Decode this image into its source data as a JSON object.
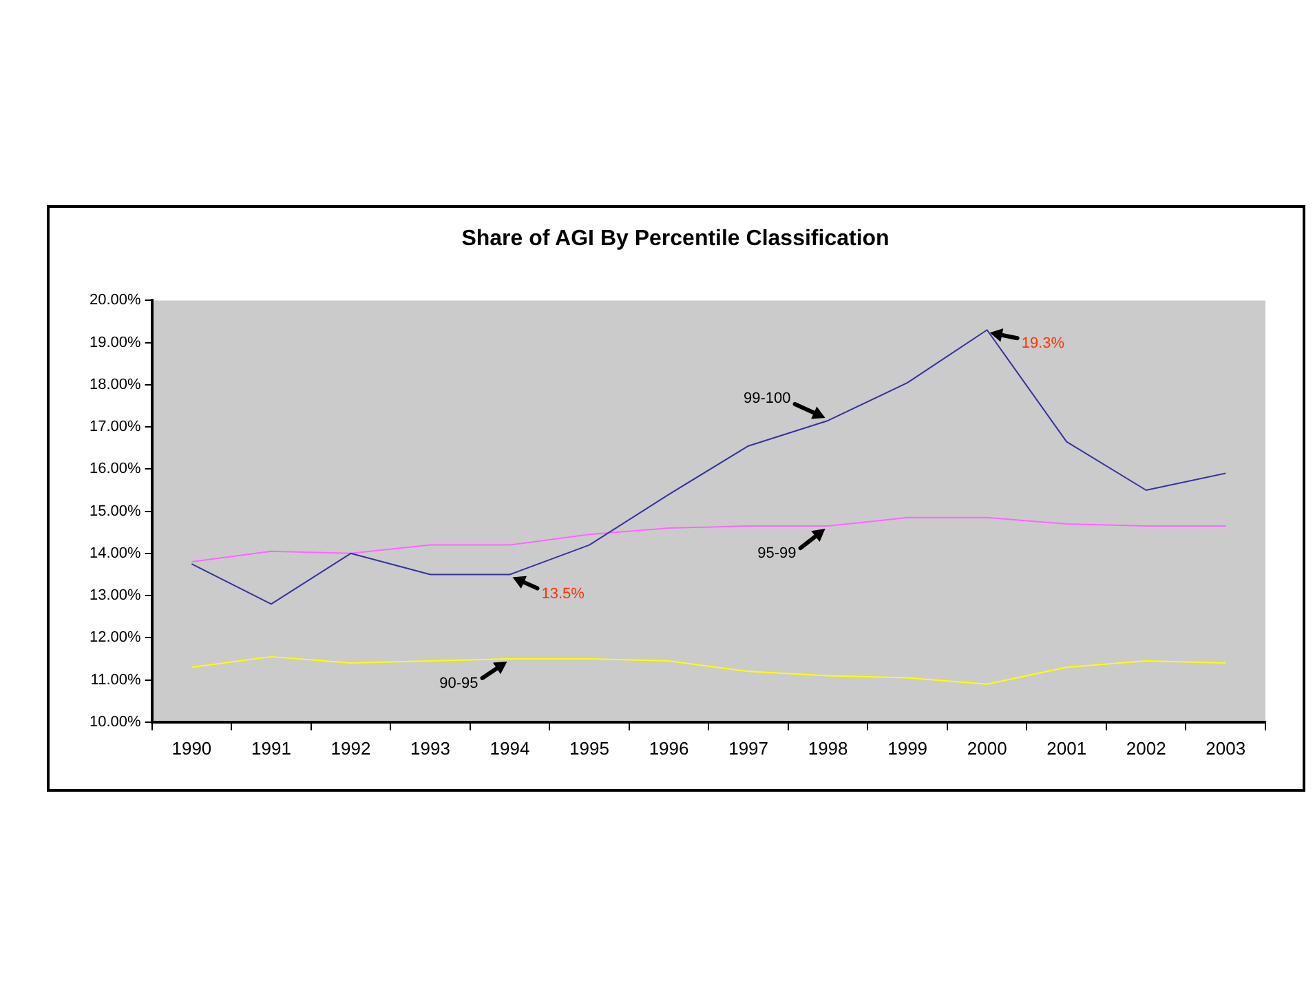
{
  "chart_data": {
    "type": "line",
    "title": "Share of AGI By Percentile Classification",
    "categories": [
      "1990",
      "1991",
      "1992",
      "1993",
      "1994",
      "1995",
      "1996",
      "1997",
      "1998",
      "1999",
      "2000",
      "2001",
      "2002",
      "2003"
    ],
    "series": [
      {
        "color": "#333399",
        "values": [
          13.75,
          12.8,
          14.0,
          13.5,
          13.5,
          14.2,
          15.4,
          16.55,
          17.15,
          18.05,
          19.3,
          16.65,
          15.5,
          15.9
        ]
      },
      {
        "color": "#ff66ff",
        "values": [
          13.8,
          14.05,
          14.0,
          14.2,
          14.2,
          14.45,
          14.6,
          14.65,
          14.65,
          14.85,
          14.85,
          14.7,
          14.65,
          14.65
        ]
      },
      {
        "color": "#ffff00",
        "values": [
          11.3,
          11.55,
          11.4,
          11.45,
          11.5,
          11.5,
          11.45,
          11.2,
          11.1,
          11.05,
          10.9,
          11.3,
          11.45,
          11.4
        ]
      }
    ],
    "ylim": [
      10,
      20
    ],
    "yticks": [
      {
        "value": 10,
        "label": "10.00%"
      },
      {
        "value": 11,
        "label": "11.00%"
      },
      {
        "value": 12,
        "label": "12.00%"
      },
      {
        "value": 13,
        "label": "13.00%"
      },
      {
        "value": 14,
        "label": "14.00%"
      },
      {
        "value": 15,
        "label": "15.00%"
      },
      {
        "value": 16,
        "label": "16.00%"
      },
      {
        "value": 17,
        "label": "17.00%"
      },
      {
        "value": 18,
        "label": "18.00%"
      },
      {
        "value": 19,
        "label": "19.00%"
      },
      {
        "value": 20,
        "label": "20.00%"
      }
    ],
    "annotations": [
      {
        "text": "99-100",
        "x": "1998",
        "y": 17.15
      },
      {
        "text": "95-99",
        "x": "1998",
        "y": 14.65
      },
      {
        "text": "90-95",
        "x": "1994",
        "y": 11.5
      },
      {
        "text": "19.3%",
        "x": "2000",
        "y": 19.3
      },
      {
        "text": "13.5%",
        "x": "1994",
        "y": 13.5
      }
    ],
    "grid": false,
    "legend": false,
    "marker": "none",
    "line_style": "solid"
  }
}
